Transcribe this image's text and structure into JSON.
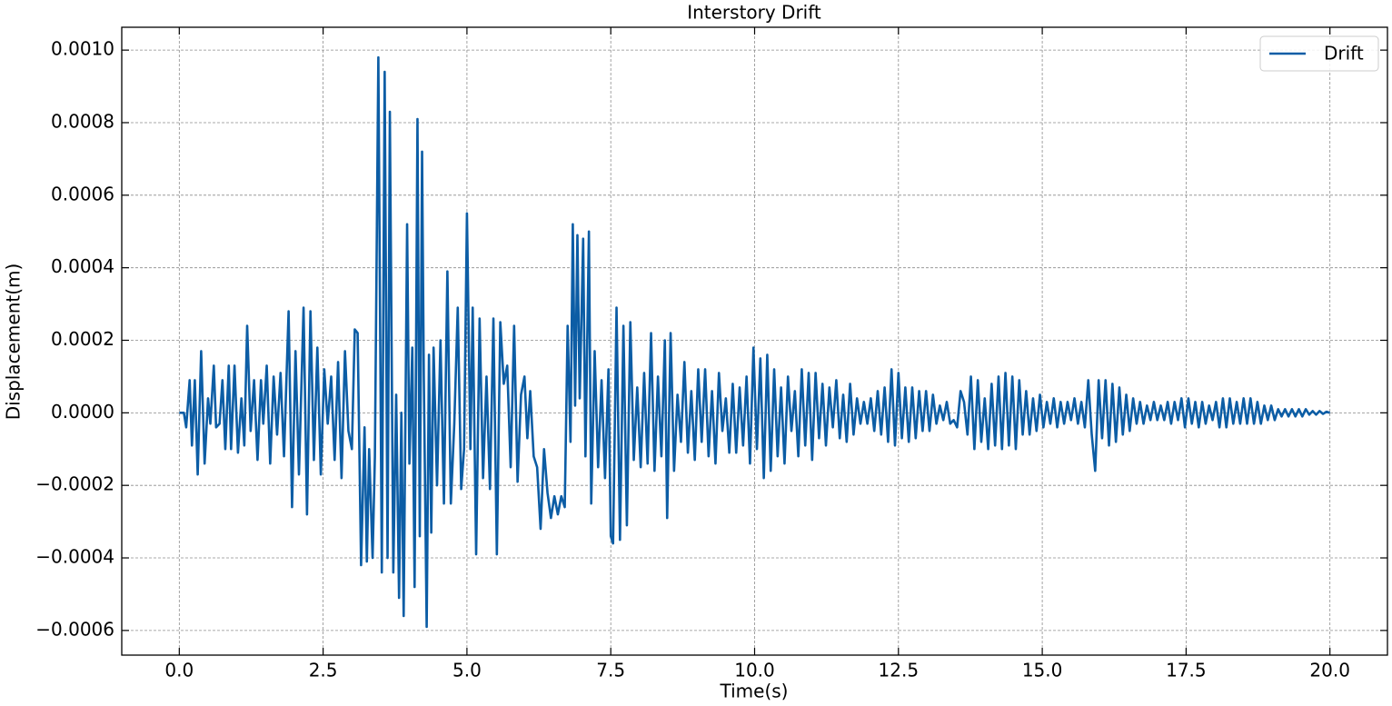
{
  "chart_data": {
    "type": "line",
    "title": "Interstory Drift",
    "x_label": "Time(s)",
    "y_label": "Displacement(m)",
    "xlim": [
      -1,
      21
    ],
    "ylim": [
      -0.000668,
      0.001063
    ],
    "xticks": [
      {
        "value": 0,
        "label": "0.0"
      },
      2.5,
      {
        "value": 5,
        "label": "5.0"
      },
      7.5,
      {
        "value": 10,
        "label": "10.0"
      },
      12.5,
      {
        "value": 15,
        "label": "15.0"
      },
      17.5,
      {
        "value": 20,
        "label": "20.0"
      }
    ],
    "yticks": [
      {
        "value": -0.0006,
        "label": "−0.0006"
      },
      {
        "value": -0.0004,
        "label": "−0.0004"
      },
      {
        "value": -0.0002,
        "label": "−0.0002"
      },
      {
        "value": 0,
        "label": "0.0000"
      },
      {
        "value": 0.0002,
        "label": "0.0002"
      },
      {
        "value": 0.0004,
        "label": "0.0004"
      },
      {
        "value": 0.0006,
        "label": "0.0006"
      },
      {
        "value": 0.0008,
        "label": "0.0008"
      },
      {
        "value": 0.001,
        "label": "0.0010"
      }
    ],
    "grid": true,
    "legend": "upper right",
    "x": [
      0,
      0.08,
      0.12,
      0.18,
      0.22,
      0.27,
      0.32,
      0.38,
      0.44,
      0.5,
      0.54,
      0.6,
      0.64,
      0.7,
      0.75,
      0.8,
      0.86,
      0.9,
      0.96,
      1.02,
      1.08,
      1.13,
      1.18,
      1.24,
      1.3,
      1.36,
      1.42,
      1.46,
      1.52,
      1.58,
      1.64,
      1.7,
      1.76,
      1.82,
      1.9,
      1.96,
      2.02,
      2.08,
      2.16,
      2.22,
      2.28,
      2.34,
      2.4,
      2.46,
      2.52,
      2.58,
      2.64,
      2.7,
      2.76,
      2.82,
      2.88,
      2.94,
      3.0,
      3.05,
      3.1,
      3.16,
      3.22,
      3.26,
      3.3,
      3.36,
      3.4,
      3.46,
      3.52,
      3.57,
      3.62,
      3.66,
      3.72,
      3.77,
      3.82,
      3.86,
      3.9,
      3.96,
      4.0,
      4.05,
      4.09,
      4.14,
      4.18,
      4.22,
      4.25,
      4.3,
      4.34,
      4.38,
      4.42,
      4.48,
      4.54,
      4.6,
      4.66,
      4.72,
      4.78,
      4.84,
      4.9,
      4.95,
      5.0,
      5.06,
      5.1,
      5.16,
      5.22,
      5.28,
      5.34,
      5.4,
      5.46,
      5.52,
      5.58,
      5.64,
      5.7,
      5.76,
      5.82,
      5.88,
      5.94,
      6.0,
      6.05,
      6.1,
      6.16,
      6.22,
      6.28,
      6.34,
      6.4,
      6.46,
      6.52,
      6.58,
      6.64,
      6.7,
      6.75,
      6.8,
      6.84,
      6.88,
      6.92,
      6.96,
      7.02,
      7.06,
      7.12,
      7.16,
      7.22,
      7.28,
      7.34,
      7.4,
      7.46,
      7.5,
      7.54,
      7.6,
      7.66,
      7.72,
      7.78,
      7.84,
      7.9,
      7.96,
      8.02,
      8.08,
      8.14,
      8.2,
      8.26,
      8.32,
      8.38,
      8.44,
      8.48,
      8.54,
      8.6,
      8.66,
      8.72,
      8.78,
      8.84,
      8.9,
      8.96,
      9.02,
      9.08,
      9.14,
      9.2,
      9.26,
      9.32,
      9.38,
      9.44,
      9.5,
      9.56,
      9.62,
      9.68,
      9.74,
      9.8,
      9.86,
      9.92,
      9.98,
      10.04,
      10.1,
      10.16,
      10.22,
      10.28,
      10.34,
      10.4,
      10.46,
      10.52,
      10.58,
      10.64,
      10.7,
      10.76,
      10.82,
      10.88,
      10.94,
      11.0,
      11.06,
      11.12,
      11.18,
      11.24,
      11.3,
      11.36,
      11.42,
      11.48,
      11.54,
      11.6,
      11.66,
      11.72,
      11.78,
      11.84,
      11.9,
      11.96,
      12.02,
      12.08,
      12.14,
      12.2,
      12.26,
      12.32,
      12.38,
      12.44,
      12.5,
      12.56,
      12.62,
      12.68,
      12.74,
      12.8,
      12.86,
      12.92,
      12.98,
      13.04,
      13.1,
      13.16,
      13.22,
      13.28,
      13.34,
      13.4,
      13.46,
      13.52,
      13.58,
      13.64,
      13.7,
      13.76,
      13.82,
      13.88,
      13.94,
      14.0,
      14.06,
      14.12,
      14.18,
      14.24,
      14.3,
      14.36,
      14.42,
      14.48,
      14.54,
      14.6,
      14.66,
      14.72,
      14.78,
      14.84,
      14.9,
      14.96,
      15.02,
      15.08,
      15.14,
      15.2,
      15.26,
      15.32,
      15.38,
      15.44,
      15.5,
      15.56,
      15.62,
      15.68,
      15.74,
      15.8,
      15.86,
      15.92,
      15.98,
      16.04,
      16.1,
      16.16,
      16.22,
      16.28,
      16.34,
      16.4,
      16.46,
      16.52,
      16.58,
      16.64,
      16.7,
      16.76,
      16.82,
      16.88,
      16.94,
      17.0,
      17.06,
      17.12,
      17.18,
      17.24,
      17.3,
      17.36,
      17.42,
      17.48,
      17.54,
      17.6,
      17.66,
      17.72,
      17.78,
      17.84,
      17.9,
      17.96,
      18.02,
      18.08,
      18.14,
      18.2,
      18.26,
      18.32,
      18.38,
      18.44,
      18.5,
      18.56,
      18.62,
      18.68,
      18.74,
      18.8,
      18.86,
      18.92,
      18.98,
      19.04,
      19.1,
      19.16,
      19.22,
      19.28,
      19.34,
      19.4,
      19.46,
      19.52,
      19.58,
      19.64,
      19.7,
      19.76,
      19.82,
      19.88,
      19.94,
      20.0
    ],
    "series": [
      {
        "name": "Drift",
        "color": "#0c5da5",
        "values": [
          0,
          0,
          -4e-05,
          9e-05,
          -9e-05,
          9e-05,
          -0.00017,
          0.00017,
          -0.00014,
          4e-05,
          -3e-05,
          0.00013,
          -4e-05,
          -3e-05,
          9e-05,
          -0.0001,
          0.00013,
          -0.0001,
          0.00013,
          -0.00011,
          4e-05,
          -9e-05,
          0.00024,
          -5e-05,
          9e-05,
          -0.00013,
          9e-05,
          -3e-05,
          0.00013,
          -0.00014,
          0.0001,
          -6e-05,
          0.00011,
          -0.00012,
          0.00028,
          -0.00026,
          0.00017,
          -0.00017,
          0.00029,
          -0.00028,
          0.00028,
          -0.00013,
          0.00018,
          -0.00017,
          0.00012,
          -3e-05,
          0.0001,
          -0.00013,
          0.00014,
          -0.00018,
          0.00017,
          -5e-05,
          -0.0001,
          0.00023,
          0.00022,
          -0.00042,
          -4e-05,
          -0.00041,
          -0.0001,
          -0.0004,
          -0.00012,
          0.00098,
          -0.00044,
          0.00094,
          -0.0004,
          0.00083,
          -0.00044,
          5e-05,
          -0.00051,
          0,
          -0.00056,
          0.00052,
          -0.00014,
          0.00018,
          -0.00048,
          0.00081,
          -0.00034,
          0.00072,
          0.0001,
          -0.00059,
          0.00016,
          -0.00033,
          0.00018,
          -0.0002,
          0.0002,
          -0.00025,
          0.00039,
          -0.00025,
          -3e-05,
          0.00029,
          -0.00021,
          -0.0001,
          0.00055,
          -0.0001,
          0.00029,
          -0.00039,
          0.00026,
          -0.00018,
          0.0001,
          -0.00021,
          0.00026,
          -0.00039,
          0.00025,
          8e-05,
          0.00013,
          -0.00015,
          0.00024,
          -0.00019,
          5e-05,
          0.0001,
          -7e-05,
          6e-05,
          -0.00012,
          -0.00015,
          -0.00032,
          -0.0001,
          -0.00022,
          -0.00029,
          -0.00023,
          -0.00028,
          -0.00023,
          -0.00026,
          0.00024,
          -8e-05,
          0.00052,
          2e-05,
          0.00049,
          4e-05,
          0.00048,
          -0.00012,
          0.0005,
          -0.00025,
          0.00017,
          -0.00015,
          9e-05,
          -0.00018,
          0.00012,
          -0.00034,
          -0.00036,
          0.00029,
          -0.00035,
          0.00024,
          -0.00031,
          0.00025,
          -0.00013,
          7e-05,
          -0.00015,
          0.00011,
          -0.00014,
          0.00022,
          -0.00016,
          0.0001,
          -0.00012,
          0.0002,
          -0.00029,
          0.00022,
          -0.00016,
          5e-05,
          -8e-05,
          0.00014,
          -0.00011,
          6e-05,
          -0.00013,
          0.00012,
          -8e-05,
          0.00012,
          -0.00012,
          6e-05,
          -0.00014,
          0.00011,
          -5e-05,
          4e-05,
          -0.00011,
          8e-05,
          -0.00011,
          7e-05,
          -9e-05,
          0.0001,
          -0.00014,
          0.00018,
          -0.0001,
          0.00015,
          -0.00018,
          0.00016,
          -0.00016,
          0.00012,
          -0.00012,
          7e-05,
          -0.00014,
          0.0001,
          -5e-05,
          6e-05,
          -0.00012,
          0.00012,
          -9e-05,
          0.00011,
          -0.00013,
          0.00011,
          -7e-05,
          8e-05,
          -9e-05,
          7e-05,
          -4e-05,
          9e-05,
          -7e-05,
          5e-05,
          -8e-05,
          8e-05,
          -6e-05,
          4e-05,
          -3e-05,
          3e-05,
          -3e-05,
          4e-05,
          -5e-05,
          6e-05,
          -6e-05,
          7e-05,
          -8e-05,
          0.00012,
          -9e-05,
          0.00011,
          -7e-05,
          7e-05,
          -8e-05,
          7e-05,
          -7e-05,
          6e-05,
          -5e-05,
          6e-05,
          -5e-05,
          5e-05,
          -3e-05,
          2e-05,
          -2e-05,
          3e-05,
          -3e-05,
          -2e-05,
          -4e-05,
          6e-05,
          3e-05,
          -6e-05,
          0.0001,
          -0.0001,
          9e-05,
          -8e-05,
          4e-05,
          -0.0001,
          8e-05,
          -9e-05,
          0.0001,
          -0.0001,
          0.00011,
          -9e-05,
          0.0001,
          -0.0001,
          9e-05,
          -6e-05,
          6e-05,
          -6e-05,
          4e-05,
          -5e-05,
          5e-05,
          -4e-05,
          3e-05,
          -3e-05,
          4e-05,
          -4e-05,
          3e-05,
          -3e-05,
          3e-05,
          -2e-05,
          4e-05,
          -3e-05,
          3e-05,
          -4e-05,
          9e-05,
          -6e-05,
          -0.00016,
          9e-05,
          -7e-05,
          9e-05,
          -9e-05,
          8e-05,
          -8e-05,
          7e-05,
          -6e-05,
          5e-05,
          -5e-05,
          4e-05,
          -3e-05,
          3e-05,
          -3e-05,
          2e-05,
          -2e-05,
          3e-05,
          -2e-05,
          2e-05,
          -2e-05,
          3e-05,
          -3e-05,
          3e-05,
          -2e-05,
          4e-05,
          -4e-05,
          4e-05,
          -3e-05,
          3e-05,
          -4e-05,
          3e-05,
          -3e-05,
          2e-05,
          -2e-05,
          3e-05,
          -4e-05,
          4e-05,
          -4e-05,
          4e-05,
          -3e-05,
          3e-05,
          -3e-05,
          4e-05,
          -3e-05,
          4e-05,
          -3e-05,
          3e-05,
          -3e-05,
          2e-05,
          -2e-05,
          2e-05,
          -2e-05,
          1e-05,
          -1e-05,
          1e-05,
          -1e-05,
          1e-05,
          -1e-05,
          1e-05,
          -1e-05,
          1e-05,
          -5e-06,
          5e-06,
          -5e-06,
          5e-06,
          -3e-06,
          3e-06,
          0
        ]
      }
    ]
  }
}
